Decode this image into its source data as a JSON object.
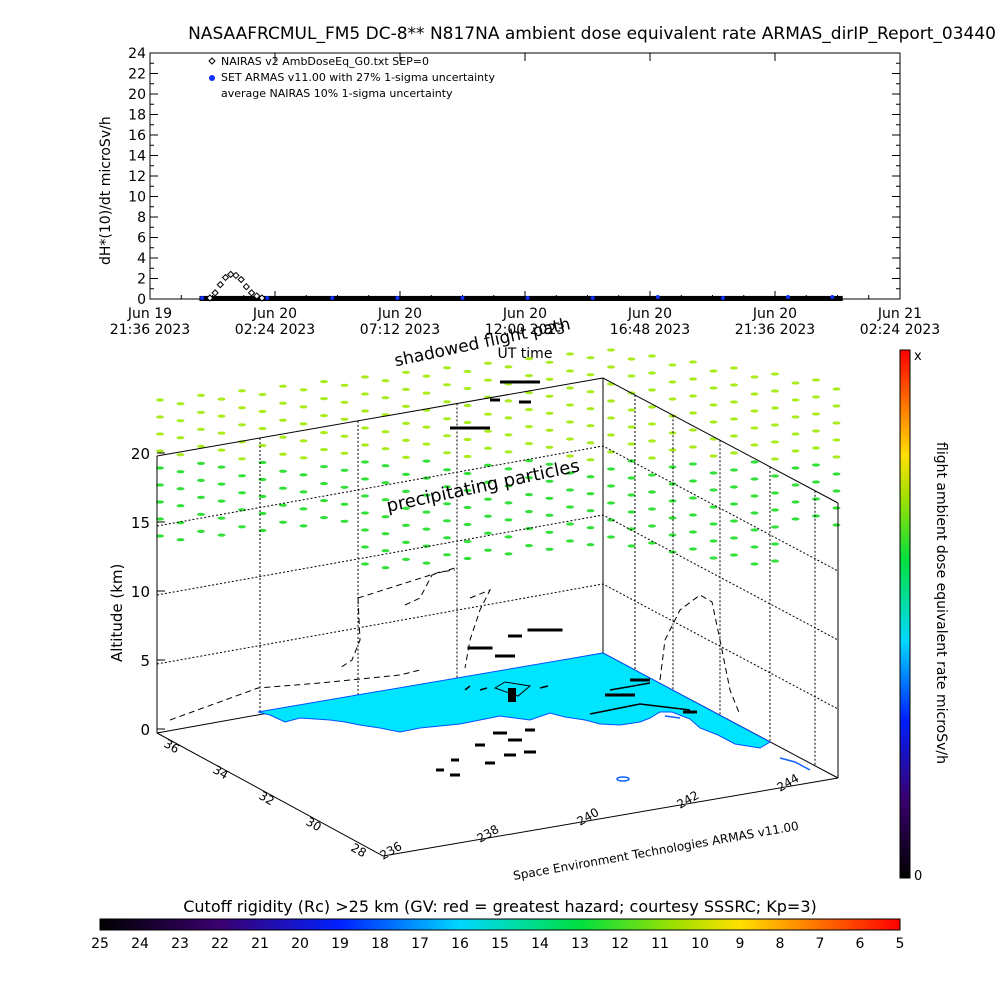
{
  "title": "NASAAFRCMUL_FM5 DC-8** N817NA ambient dose equivalent rate ARMAS_dirIP_Report_03440",
  "top_chart": {
    "ylabel": "dH*(10)/dt microSv/h",
    "xlabel": "UT time",
    "yticks": [
      "0",
      "2",
      "4",
      "6",
      "8",
      "10",
      "12",
      "14",
      "16",
      "18",
      "20",
      "22",
      "24"
    ],
    "xticks": [
      {
        "l1": "Jun 19",
        "l2": "21:36 2023"
      },
      {
        "l1": "Jun 20",
        "l2": "02:24 2023"
      },
      {
        "l1": "Jun 20",
        "l2": "07:12 2023"
      },
      {
        "l1": "Jun 20",
        "l2": "12:00 2023"
      },
      {
        "l1": "Jun 20",
        "l2": "16:48 2023"
      },
      {
        "l1": "Jun 20",
        "l2": "21:36 2023"
      },
      {
        "l1": "Jun 21",
        "l2": "02:24 2023"
      }
    ],
    "legend": [
      {
        "marker": "diamond",
        "text": "NAIRAS v2 AmbDoseEq_G0.txt SEP=0"
      },
      {
        "marker": "dot",
        "text": "SET ARMAS v11.00 with 27% 1-sigma uncertainty"
      },
      {
        "marker": "none",
        "text": "average NAIRAS 10% 1-sigma uncertainty"
      }
    ],
    "annotation": "shadowed flight path"
  },
  "chart_data": {
    "type": "scatter",
    "title": "NASAAFRCMUL_FM5 DC-8** N817NA ambient dose equivalent rate ARMAS_dirIP_Report_03440",
    "xlabel": "UT time",
    "ylabel": "dH*(10)/dt microSv/h",
    "ylim": [
      0,
      24
    ],
    "xlim_hours_from_jun19_2136": [
      0,
      28.8
    ],
    "series": [
      {
        "name": "NAIRAS v2 AmbDoseEq_G0.txt SEP=0",
        "x_hours": [
          2.3,
          2.5,
          2.7,
          2.9,
          3.1,
          3.3,
          3.5,
          3.7,
          3.9,
          4.1,
          4.3
        ],
        "y": [
          0.1,
          0.6,
          1.4,
          2.1,
          2.4,
          2.3,
          1.9,
          1.2,
          0.6,
          0.3,
          0.1
        ]
      },
      {
        "name": "SET ARMAS v11.00 with 27% 1-sigma uncertainty",
        "x_hours": [
          2.0,
          4.5,
          7.0,
          9.5,
          12.0,
          14.5,
          17.0,
          19.5,
          22.0,
          24.5,
          26.2
        ],
        "y": [
          0.1,
          0.1,
          0.1,
          0.1,
          0.1,
          0.1,
          0.1,
          0.2,
          0.1,
          0.2,
          0.2
        ]
      }
    ],
    "altitude_axis": {
      "label": "Altitude (km)",
      "ticks": [
        "0",
        "5",
        "10",
        "15",
        "20"
      ]
    },
    "lat_ticks": [
      "36",
      "34",
      "32",
      "30",
      "28"
    ],
    "lon_ticks": [
      "236",
      "238",
      "240",
      "242",
      "244"
    ],
    "colorbar_right": {
      "label": "flight ambient dose equivalent rate microSv/h",
      "top": "x",
      "bottom": "0"
    },
    "colorbar_bottom": {
      "label": "Cutoff rigidity (Rc) >25 km (GV: red = greatest hazard; courtesy SSSRC; Kp=3)",
      "ticks": [
        "25",
        "24",
        "23",
        "22",
        "21",
        "20",
        "19",
        "18",
        "17",
        "16",
        "15",
        "14",
        "13",
        "12",
        "11",
        "10",
        "9",
        "8",
        "7",
        "6",
        "5"
      ]
    }
  },
  "scene": {
    "label_particles": "precipitating particles",
    "credit": "Space Environment Technologies ARMAS v11.00",
    "ocean_color": "#00e5ff",
    "particle_color": "#33e03a",
    "particle_color_top": "#a8ec1c"
  }
}
